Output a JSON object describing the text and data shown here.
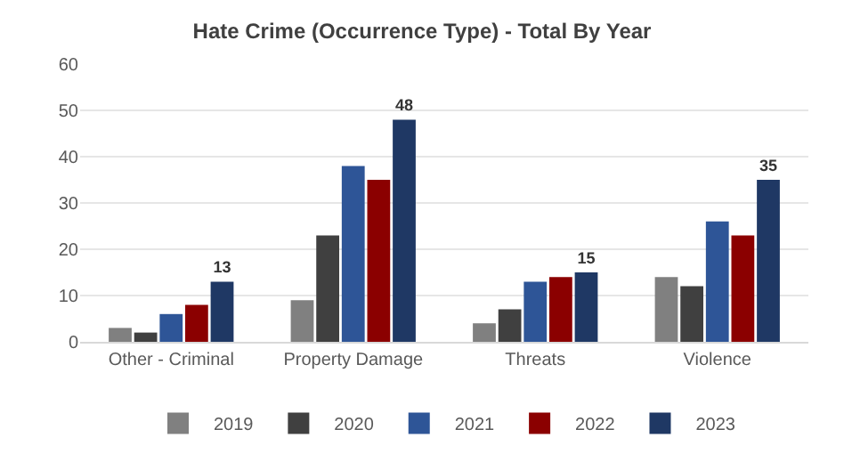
{
  "chart_data": {
    "type": "bar",
    "title": "Hate Crime (Occurrence Type) - Total By Year",
    "categories": [
      "Other - Criminal",
      "Property Damage",
      "Threats",
      "Violence"
    ],
    "series": [
      {
        "name": "2019",
        "color": "#808080",
        "values": [
          3,
          9,
          4,
          14
        ]
      },
      {
        "name": "2020",
        "color": "#404040",
        "values": [
          2,
          23,
          7,
          12
        ]
      },
      {
        "name": "2021",
        "color": "#2e5597",
        "values": [
          6,
          38,
          13,
          26
        ]
      },
      {
        "name": "2022",
        "color": "#8b0000",
        "values": [
          8,
          35,
          14,
          23
        ]
      },
      {
        "name": "2023",
        "color": "#1f3864",
        "values": [
          13,
          48,
          15,
          35
        ],
        "value_labels": [
          "13",
          "48",
          "15",
          "35"
        ]
      }
    ],
    "ylim": [
      0,
      60
    ],
    "yticks": [
      0,
      10,
      20,
      30,
      40,
      50,
      60
    ],
    "grid": "y",
    "legend": "bottom"
  }
}
